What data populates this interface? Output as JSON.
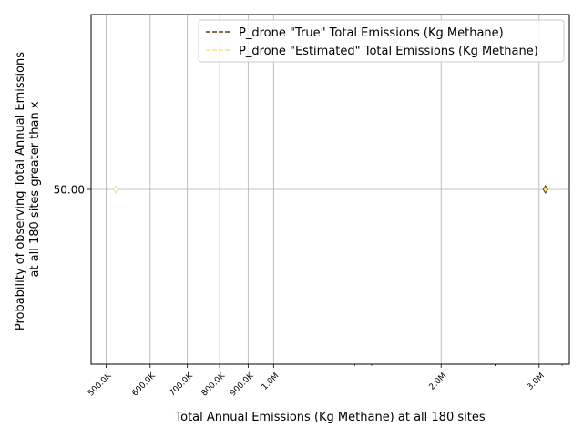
{
  "chart_data": {
    "type": "scatter",
    "title": "",
    "xlabel": "Total Annual Emissions (Kg Methane) at all 180 sites",
    "ylabel_lines": [
      "Probability of observing Total Annual Emissions",
      "at all 180 sites greater than x"
    ],
    "xscale": "log",
    "xlim": [
      470000,
      3400000
    ],
    "ylim": [
      49.9,
      50.1
    ],
    "grid": true,
    "legend_position": "upper-right",
    "x_ticks": [
      {
        "value": 500000,
        "label": "500.0K"
      },
      {
        "value": 600000,
        "label": "600.0K"
      },
      {
        "value": 700000,
        "label": "700.0K"
      },
      {
        "value": 800000,
        "label": "800.0K"
      },
      {
        "value": 900000,
        "label": "900.0K"
      },
      {
        "value": 1000000,
        "label": "1.0M"
      },
      {
        "value": 2000000,
        "label": "2.0M"
      },
      {
        "value": 3000000,
        "label": "3.0M"
      }
    ],
    "y_ticks": [
      {
        "value": 50,
        "label": "50.00"
      }
    ],
    "series": [
      {
        "name": "P_drone \"True\" Total Emissions (Kg Methane)",
        "color": "#5a4208",
        "linestyle": "dashed",
        "marker": "diamond",
        "points": [
          {
            "x": 3080000,
            "y": 50
          }
        ]
      },
      {
        "name": "P_drone \"Estimated\" Total Emissions (Kg Methane)",
        "color": "#f5e27a",
        "linestyle": "dashed",
        "marker": "diamond",
        "points": [
          {
            "x": 520000,
            "y": 50
          }
        ]
      }
    ]
  }
}
